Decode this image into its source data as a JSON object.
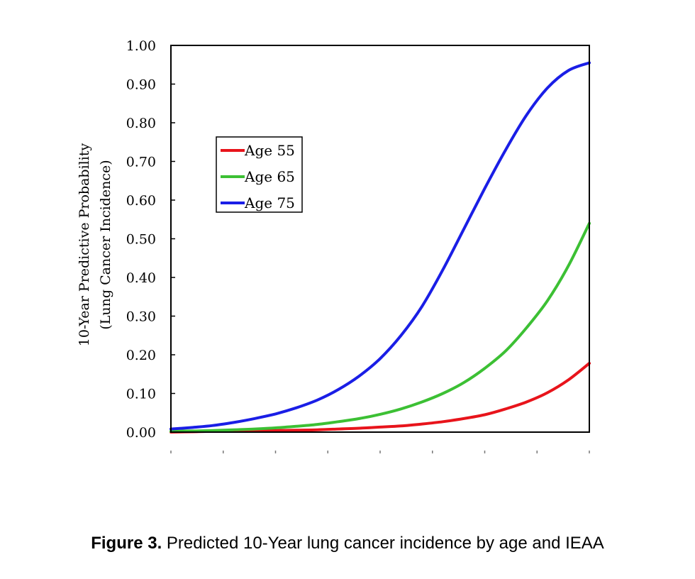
{
  "caption": {
    "label": "Figure 3.",
    "text": "Predicted 10-Year lung cancer incidence by age and IEAA"
  },
  "chart_data": {
    "type": "line",
    "title": "",
    "xlabel": "",
    "ylabel_line1": "10-Year Predictive Probability",
    "ylabel_line2": "(Lung Cancer Incidence)",
    "ylim": [
      0,
      1
    ],
    "y_ticks": [
      "0.00",
      "0.10",
      "0.20",
      "0.30",
      "0.40",
      "0.50",
      "0.60",
      "0.70",
      "0.80",
      "0.90",
      "1.00"
    ],
    "y_tick_values": [
      0,
      0.1,
      0.2,
      0.3,
      0.4,
      0.5,
      0.6,
      0.7,
      0.8,
      0.9,
      1.0
    ],
    "x_tick_labels_visible": false,
    "legend": "upper-left",
    "grid": false,
    "x": [
      0,
      0.05,
      0.1,
      0.15,
      0.2,
      0.25,
      0.3,
      0.35,
      0.4,
      0.45,
      0.5,
      0.55,
      0.6,
      0.65,
      0.7,
      0.75,
      0.8,
      0.85,
      0.9,
      0.95,
      1.0
    ],
    "series": [
      {
        "name": "Age 55",
        "color": "#e8141b",
        "values": [
          0.0,
          0.001,
          0.002,
          0.002,
          0.003,
          0.004,
          0.005,
          0.006,
          0.008,
          0.01,
          0.013,
          0.016,
          0.021,
          0.027,
          0.035,
          0.045,
          0.06,
          0.078,
          0.102,
          0.135,
          0.178
        ]
      },
      {
        "name": "Age 65",
        "color": "#3cc034",
        "values": [
          0.002,
          0.003,
          0.004,
          0.006,
          0.008,
          0.011,
          0.015,
          0.02,
          0.027,
          0.035,
          0.046,
          0.06,
          0.078,
          0.1,
          0.128,
          0.165,
          0.21,
          0.27,
          0.34,
          0.43,
          0.54
        ]
      },
      {
        "name": "Age 75",
        "color": "#1a1ee6",
        "values": [
          0.008,
          0.012,
          0.017,
          0.025,
          0.035,
          0.047,
          0.063,
          0.083,
          0.11,
          0.145,
          0.19,
          0.25,
          0.325,
          0.42,
          0.525,
          0.63,
          0.73,
          0.82,
          0.89,
          0.935,
          0.955
        ]
      }
    ]
  }
}
